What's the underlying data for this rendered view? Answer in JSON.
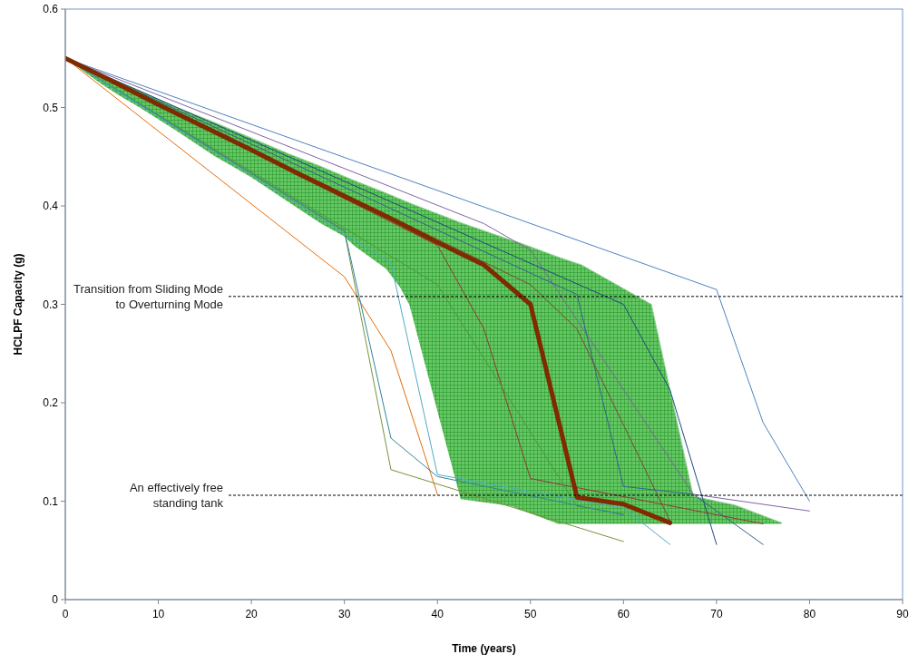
{
  "chart_data": {
    "type": "line",
    "xlabel": "Time (years)",
    "ylabel": "HCLPF Capacity (g)",
    "xlim": [
      0,
      90
    ],
    "xticks": [
      0,
      10,
      20,
      30,
      40,
      50,
      60,
      70,
      80,
      90
    ],
    "ylim": [
      0,
      0.6
    ],
    "yticks": [
      0,
      0.1,
      0.2,
      0.3,
      0.4,
      0.5,
      0.6
    ],
    "grid": false,
    "marker": "none",
    "line_style": "solid",
    "series": [
      {
        "color": "#9bd39b",
        "upper": [
          0.55,
          0.533,
          0.525,
          0.517,
          0.5,
          0.485,
          0.477,
          0.469,
          0.453,
          0.44,
          0.43,
          0.426,
          0.413,
          0.407,
          0.403,
          0.383,
          0.365,
          0.362,
          0.348,
          0.34,
          0.3,
          0.105,
          0.096,
          0.078
        ],
        "x": [
          0,
          4,
          6,
          8,
          12,
          16,
          18,
          20,
          24,
          27.5,
          30,
          31,
          34.5,
          36,
          37,
          42.5,
          48,
          49,
          53,
          55.5,
          63,
          67.5,
          72,
          77
        ],
        "values": [
          0.55,
          0.533,
          0.525,
          0.517,
          0.5,
          0.485,
          0.477,
          0.469,
          0.453,
          0.44,
          0.43,
          0.426,
          0.413,
          0.407,
          0.403,
          0.383,
          0.365,
          0.362,
          0.348,
          0.34,
          0.3,
          0.105,
          0.096,
          0.078
        ],
        "lower": [
          0.55,
          0.523,
          0.511,
          0.5,
          0.476,
          0.451,
          0.44,
          0.429,
          0.404,
          0.382,
          0.369,
          0.36,
          0.336,
          0.317,
          0.299,
          0.102,
          0.095,
          0.091,
          0.077,
          0.077,
          0.077,
          0.077,
          0.077,
          0.077
        ]
      },
      {
        "color": "#4f81bd",
        "x": [
          0,
          70,
          75,
          80
        ],
        "values": [
          0.55,
          0.315,
          0.18,
          0.1
        ]
      },
      {
        "color": "#8064a2",
        "x": [
          0,
          45,
          50,
          67.5,
          80
        ],
        "values": [
          0.55,
          0.382,
          0.355,
          0.107,
          0.09
        ]
      },
      {
        "color": "#1f497d",
        "x": [
          0,
          60,
          65,
          70
        ],
        "values": [
          0.55,
          0.3,
          0.213,
          0.056
        ]
      },
      {
        "color": "#376092",
        "x": [
          0,
          55,
          60,
          67.5,
          75
        ],
        "values": [
          0.55,
          0.31,
          0.115,
          0.107,
          0.056
        ]
      },
      {
        "color": "#953735",
        "x": [
          0,
          40,
          45,
          50,
          75
        ],
        "values": [
          0.55,
          0.36,
          0.275,
          0.123,
          0.077
        ]
      },
      {
        "color": "#7f4a3a",
        "x": [
          0,
          50,
          55,
          65
        ],
        "values": [
          0.55,
          0.32,
          0.275,
          0.08
        ]
      },
      {
        "color": "#4f9a3f",
        "x": [
          0,
          40,
          45,
          55,
          60
        ],
        "values": [
          0.55,
          0.32,
          0.245,
          0.095,
          0.087
        ]
      },
      {
        "color": "#e46c0a",
        "x": [
          0,
          30,
          35,
          40
        ],
        "values": [
          0.55,
          0.328,
          0.253,
          0.107
        ]
      },
      {
        "color": "#77933c",
        "x": [
          0,
          30,
          35,
          60
        ],
        "values": [
          0.55,
          0.374,
          0.132,
          0.059
        ]
      },
      {
        "color": "#31859c",
        "x": [
          0,
          30,
          35,
          40,
          60
        ],
        "values": [
          0.55,
          0.375,
          0.164,
          0.125,
          0.086
        ]
      },
      {
        "color": "#4bacc6",
        "x": [
          0,
          35,
          40,
          60,
          65
        ],
        "values": [
          0.55,
          0.342,
          0.127,
          0.093,
          0.056
        ]
      },
      {
        "color": "#7f2a00",
        "x": [
          0,
          5,
          10,
          15,
          20,
          25,
          30,
          35,
          40,
          45,
          50,
          55,
          60,
          65
        ],
        "values": [
          0.55,
          0.527,
          0.503,
          0.48,
          0.457,
          0.433,
          0.41,
          0.387,
          0.363,
          0.34,
          0.3,
          0.104,
          0.097,
          0.078
        ]
      }
    ],
    "ref_lines": [
      {
        "axis": "y",
        "value": 0.308,
        "label": "Transition from Sliding Mode\nto Overturning Mode",
        "color": "#000000",
        "line_style": "dashed"
      },
      {
        "axis": "y",
        "value": 0.106,
        "label": "An effectively free\nstanding tank",
        "color": "#000000",
        "line_style": "dashed"
      }
    ]
  }
}
